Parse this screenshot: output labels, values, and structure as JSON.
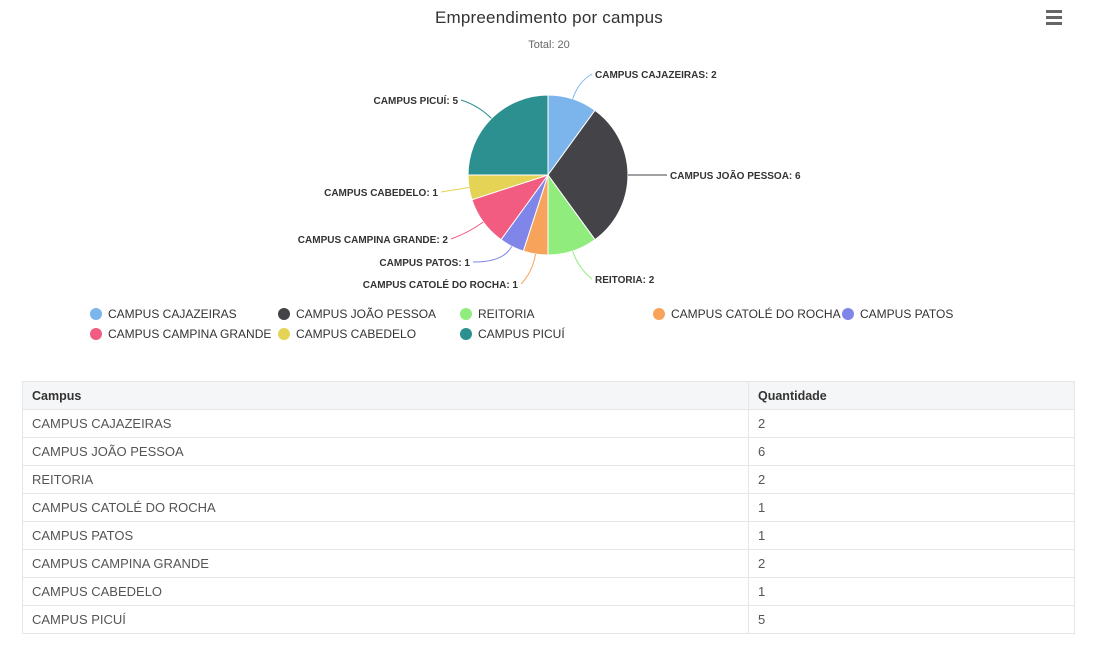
{
  "chart": {
    "title": "Empreendimento por campus",
    "subtitle": "Total: 20",
    "menu_icon": "hamburger-menu-icon",
    "menu_tooltip": "Chart context menu"
  },
  "chart_data": {
    "type": "pie",
    "title": "Empreendimento por campus",
    "subtitle": "Total: 20",
    "total": 20,
    "label_format": "{name}: {value}",
    "legend_position": "bottom",
    "slices": [
      {
        "name": "CAMPUS CAJAZEIRAS",
        "value": 2,
        "color": "#7cb5ec"
      },
      {
        "name": "CAMPUS JOÃO PESSOA",
        "value": 6,
        "color": "#434348"
      },
      {
        "name": "REITORIA",
        "value": 2,
        "color": "#90ed7d"
      },
      {
        "name": "CAMPUS CATOLÉ DO ROCHA",
        "value": 1,
        "color": "#f7a35c"
      },
      {
        "name": "CAMPUS PATOS",
        "value": 1,
        "color": "#8085e9"
      },
      {
        "name": "CAMPUS CAMPINA GRANDE",
        "value": 2,
        "color": "#f15c80"
      },
      {
        "name": "CAMPUS CABEDELO",
        "value": 1,
        "color": "#e4d354"
      },
      {
        "name": "CAMPUS PICUÍ",
        "value": 5,
        "color": "#2b908f"
      }
    ]
  },
  "table": {
    "headers": [
      "Campus",
      "Quantidade"
    ],
    "rows": [
      [
        "CAMPUS CAJAZEIRAS",
        "2"
      ],
      [
        "CAMPUS JOÃO PESSOA",
        "6"
      ],
      [
        "REITORIA",
        "2"
      ],
      [
        "CAMPUS CATOLÉ DO ROCHA",
        "1"
      ],
      [
        "CAMPUS PATOS",
        "1"
      ],
      [
        "CAMPUS CAMPINA GRANDE",
        "2"
      ],
      [
        "CAMPUS CABEDELO",
        "1"
      ],
      [
        "CAMPUS PICUÍ",
        "5"
      ]
    ]
  }
}
